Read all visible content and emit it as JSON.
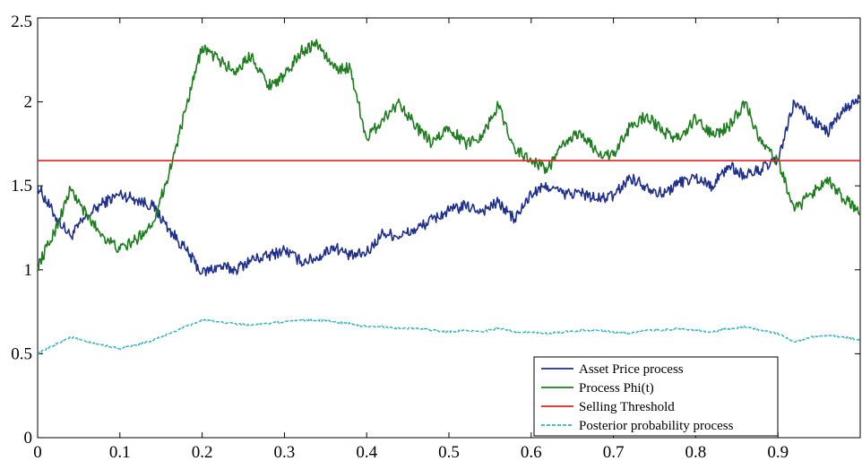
{
  "chart_data": {
    "type": "line",
    "title": "",
    "xlabel": "",
    "ylabel": "",
    "xlim": [
      0,
      1
    ],
    "ylim": [
      0,
      2.5
    ],
    "x_ticks": [
      0,
      0.1,
      0.2,
      0.3,
      0.4,
      0.5,
      0.6,
      0.7,
      0.8,
      0.9
    ],
    "x_tick_labels": [
      "0",
      "0.1",
      "0.2",
      "0.3",
      "0.4",
      "0.5",
      "0.6",
      "0.7",
      "0.8",
      "0.9"
    ],
    "y_ticks": [
      0,
      0.5,
      1,
      1.5,
      2,
      2.5
    ],
    "y_tick_labels": [
      "0",
      "0.5",
      "1",
      "1.5",
      "2",
      "2.5"
    ],
    "grid": false,
    "legend_position": "bottom-right",
    "series": [
      {
        "name": "Asset Price process",
        "color": "#1f2f8c",
        "style": "solid",
        "x": [
          0,
          0.02,
          0.04,
          0.06,
          0.08,
          0.1,
          0.12,
          0.14,
          0.16,
          0.18,
          0.2,
          0.22,
          0.24,
          0.26,
          0.28,
          0.3,
          0.32,
          0.34,
          0.36,
          0.38,
          0.4,
          0.42,
          0.44,
          0.46,
          0.48,
          0.5,
          0.52,
          0.54,
          0.56,
          0.58,
          0.6,
          0.62,
          0.64,
          0.66,
          0.68,
          0.7,
          0.72,
          0.74,
          0.76,
          0.78,
          0.8,
          0.82,
          0.84,
          0.86,
          0.88,
          0.9,
          0.92,
          0.94,
          0.96,
          0.98,
          1.0
        ],
        "y": [
          1.5,
          1.33,
          1.2,
          1.32,
          1.4,
          1.45,
          1.42,
          1.38,
          1.24,
          1.12,
          0.98,
          1.02,
          1.0,
          1.06,
          1.08,
          1.12,
          1.05,
          1.07,
          1.14,
          1.08,
          1.1,
          1.22,
          1.2,
          1.24,
          1.3,
          1.35,
          1.38,
          1.35,
          1.4,
          1.3,
          1.45,
          1.5,
          1.45,
          1.46,
          1.42,
          1.44,
          1.55,
          1.5,
          1.45,
          1.52,
          1.55,
          1.5,
          1.62,
          1.56,
          1.6,
          1.65,
          2.0,
          1.9,
          1.82,
          1.95,
          2.02
        ]
      },
      {
        "name": "Process Phi(t)",
        "color": "#1e7d1e",
        "style": "solid",
        "x": [
          0,
          0.02,
          0.04,
          0.06,
          0.08,
          0.1,
          0.12,
          0.14,
          0.16,
          0.18,
          0.2,
          0.22,
          0.24,
          0.26,
          0.28,
          0.3,
          0.32,
          0.34,
          0.36,
          0.38,
          0.4,
          0.42,
          0.44,
          0.46,
          0.48,
          0.5,
          0.52,
          0.54,
          0.56,
          0.58,
          0.6,
          0.62,
          0.64,
          0.66,
          0.68,
          0.7,
          0.72,
          0.74,
          0.76,
          0.78,
          0.8,
          0.82,
          0.84,
          0.86,
          0.88,
          0.9,
          0.92,
          0.94,
          0.96,
          0.98,
          1.0
        ],
        "y": [
          1.02,
          1.22,
          1.48,
          1.32,
          1.2,
          1.12,
          1.18,
          1.28,
          1.58,
          1.95,
          2.33,
          2.25,
          2.18,
          2.28,
          2.1,
          2.15,
          2.3,
          2.35,
          2.2,
          2.2,
          1.78,
          1.9,
          2.0,
          1.85,
          1.75,
          1.85,
          1.75,
          1.8,
          1.98,
          1.72,
          1.65,
          1.6,
          1.75,
          1.82,
          1.7,
          1.68,
          1.85,
          1.92,
          1.82,
          1.78,
          1.9,
          1.8,
          1.85,
          2.0,
          1.75,
          1.65,
          1.35,
          1.45,
          1.55,
          1.42,
          1.35
        ]
      },
      {
        "name": "Selling Threshold",
        "color": "#e02020",
        "style": "solid",
        "x": [
          0,
          1
        ],
        "y": [
          1.65,
          1.65
        ]
      },
      {
        "name": "Posterior probability process",
        "color": "#30b4c0",
        "style": "dashed",
        "x": [
          0,
          0.02,
          0.04,
          0.06,
          0.08,
          0.1,
          0.12,
          0.14,
          0.16,
          0.18,
          0.2,
          0.22,
          0.24,
          0.26,
          0.28,
          0.3,
          0.32,
          0.34,
          0.36,
          0.38,
          0.4,
          0.42,
          0.44,
          0.46,
          0.48,
          0.5,
          0.52,
          0.54,
          0.56,
          0.58,
          0.6,
          0.62,
          0.64,
          0.66,
          0.68,
          0.7,
          0.72,
          0.74,
          0.76,
          0.78,
          0.8,
          0.82,
          0.84,
          0.86,
          0.88,
          0.9,
          0.92,
          0.94,
          0.96,
          0.98,
          1.0
        ],
        "y": [
          0.5,
          0.55,
          0.6,
          0.57,
          0.55,
          0.53,
          0.55,
          0.58,
          0.62,
          0.66,
          0.7,
          0.69,
          0.68,
          0.67,
          0.68,
          0.69,
          0.7,
          0.7,
          0.69,
          0.68,
          0.66,
          0.66,
          0.65,
          0.65,
          0.64,
          0.63,
          0.64,
          0.63,
          0.65,
          0.63,
          0.63,
          0.62,
          0.63,
          0.64,
          0.64,
          0.63,
          0.62,
          0.64,
          0.64,
          0.65,
          0.64,
          0.63,
          0.65,
          0.66,
          0.64,
          0.62,
          0.57,
          0.6,
          0.61,
          0.6,
          0.58
        ]
      }
    ]
  }
}
